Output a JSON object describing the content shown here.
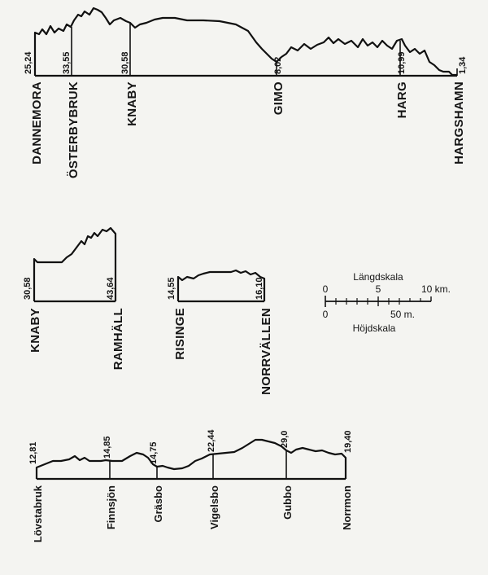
{
  "profiles": [
    {
      "id": "main-line",
      "stations": [
        {
          "name": "DANNEMORA",
          "km": "25,24"
        },
        {
          "name": "ÖSTERBYBRUK",
          "km": "33,55"
        },
        {
          "name": "KNABY",
          "km": "30,58"
        },
        {
          "name": "GIMO",
          "km": "8,02"
        },
        {
          "name": "HARG",
          "km": "10,99"
        },
        {
          "name": "HARGSHAMN",
          "km": "1,34"
        }
      ]
    },
    {
      "id": "knaby-ramhall",
      "stations": [
        {
          "name": "KNABY",
          "km": "30,58"
        },
        {
          "name": "RAMHÄLL",
          "km": "43,64"
        }
      ]
    },
    {
      "id": "risinge-norrvallen",
      "stations": [
        {
          "name": "RISINGE",
          "km": "14,55"
        },
        {
          "name": "NORRVÄLLEN",
          "km": "16,10"
        }
      ]
    },
    {
      "id": "lovstabruk-norrmon",
      "stations": [
        {
          "name": "Lövstabruk",
          "km": "12,81"
        },
        {
          "name": "Finnsjön",
          "km": "14,85"
        },
        {
          "name": "Gräsbo",
          "km": "14,75"
        },
        {
          "name": "Vigelsbo",
          "km": "22,44"
        },
        {
          "name": "Gubbo",
          "km": "29,0"
        },
        {
          "name": "Norrmon",
          "km": "19,40"
        }
      ]
    }
  ],
  "scale": {
    "length_label": "Längdskala",
    "height_label": "Höjdskala",
    "length_ticks": [
      "0",
      "5",
      "10 km."
    ],
    "height_ticks": [
      "0",
      "50 m."
    ]
  }
}
